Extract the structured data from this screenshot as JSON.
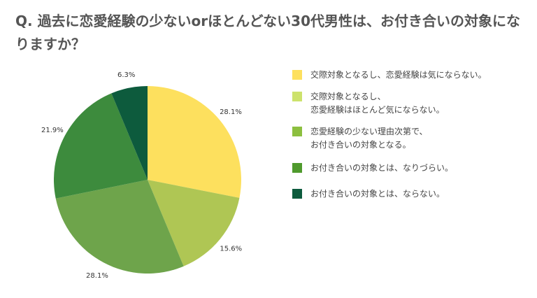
{
  "title": "Q. 過去に恋愛経験の少ないorほとんどない30代男性は、お付き合いの対象になりますか？",
  "chart_data": {
    "type": "pie",
    "slices": [
      {
        "label": "交際対象となるし、恋愛経験は気にならない。",
        "value": 28.1,
        "value_label": "28.1%",
        "color": "#fde05e"
      },
      {
        "label": "交際対象となるし、\n恋愛経験はほとんど気にならない。",
        "value": 15.6,
        "value_label": "15.6%",
        "color": "#afc654"
      },
      {
        "label": "恋愛経験の少ない理由次第で、\nお付き合いの対象となる。",
        "value": 28.1,
        "value_label": "28.1%",
        "color": "#6ea44b"
      },
      {
        "label": "お付き合いの対象とは、なりづらい。",
        "value": 21.9,
        "value_label": "21.9%",
        "color": "#3d8b3d"
      },
      {
        "label": "お付き合いの対象とは、ならない。",
        "value": 6.3,
        "value_label": "6.3%",
        "color": "#0d5b3d"
      }
    ],
    "legend_colors": [
      "#fde05e",
      "#cde26c",
      "#8cbf3f",
      "#4f9a2d",
      "#0d5b3d"
    ],
    "legend_position": "right"
  }
}
